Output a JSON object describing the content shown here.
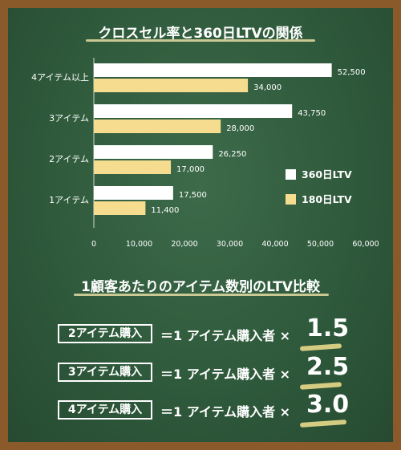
{
  "chart_data": {
    "type": "bar",
    "orientation": "horizontal",
    "title": "クロスセル率と360日LTVの関係",
    "categories": [
      "4アイテム以上",
      "3アイテム",
      "2アイテム",
      "1アイテム"
    ],
    "series": [
      {
        "name": "360日LTV",
        "values": [
          52500,
          43750,
          26250,
          17500
        ],
        "color": "#ffffff",
        "labels": [
          "52,500",
          "43,750",
          "26,250",
          "17,500"
        ]
      },
      {
        "name": "180日LTV",
        "values": [
          34000,
          28000,
          17000,
          11400
        ],
        "color": "#f5dc8e",
        "labels": [
          "34,000",
          "28,000",
          "17,000",
          "11,400"
        ]
      }
    ],
    "xlim": [
      0,
      60000
    ],
    "xticks": [
      "0",
      "10,000",
      "20,000",
      "30,000",
      "40,000",
      "50,000",
      "60,000"
    ],
    "legend_position": "right",
    "grid": false
  },
  "section2": {
    "title": "1顧客あたりのアイテム数別のLTV比較",
    "rows": [
      {
        "label": "2アイテム購入",
        "eq": "＝1 アイテム購入者 ×",
        "mult": "1.5"
      },
      {
        "label": "3アイテム購入",
        "eq": "＝1 アイテム購入者 ×",
        "mult": "2.5"
      },
      {
        "label": "4アイテム購入",
        "eq": "＝1 アイテム購入者 ×",
        "mult": "3.0"
      }
    ]
  },
  "colors": {
    "board": "#2f5a3c",
    "frame": "#8a5a2b",
    "bar_360": "#ffffff",
    "bar_180": "#f5dc8e",
    "chalk": "#e8d98a"
  }
}
